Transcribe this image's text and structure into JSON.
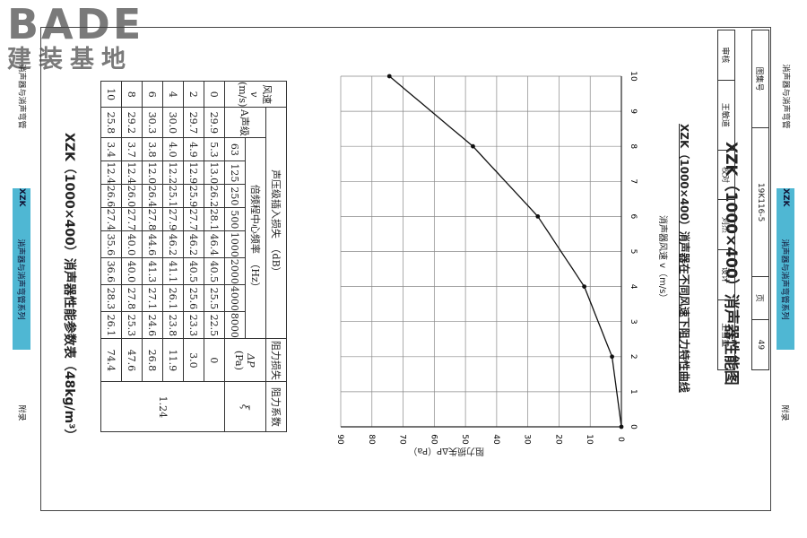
{
  "logo": {
    "en": "BADE",
    "cn": "建装基地"
  },
  "side_left": {
    "top": "消声器与消声弯管",
    "tab": "XZK",
    "tab_sub": "消声器与消声弯管系列",
    "bottom": "附录"
  },
  "side_right": {
    "top": "消声器与消声弯管",
    "tab": "XZK",
    "tab_sub": "消声器与消声弯管系列",
    "bottom": "附录"
  },
  "table_title": "XZK（1000×400）消声器性能参数表（48kg/m³）",
  "table": {
    "h_velocity": "风速",
    "h_v": "v",
    "h_unit": "(m/s)",
    "h_sound": "声压级插入损失　（dB）",
    "h_a_level": "A声级",
    "h_octave": "倍频程中心频率　（Hz）",
    "freqs": [
      "63",
      "125",
      "250",
      "500",
      "1000",
      "2000",
      "4000",
      "8000"
    ],
    "h_resist": "阻力损失",
    "h_dp": "ΔP",
    "h_pa": "(Pa)",
    "h_coef": "阻力系数",
    "h_xi": "ξ",
    "coef_value": "1.24",
    "rows": [
      {
        "v": "0",
        "a": "29.9",
        "f": [
          "5.3",
          "13.0",
          "26.2",
          "28.1",
          "46.4",
          "40.5",
          "25.5",
          "22.5"
        ],
        "dp": "0"
      },
      {
        "v": "2",
        "a": "29.7",
        "f": [
          "4.9",
          "12.9",
          "25.9",
          "27.7",
          "46.2",
          "40.5",
          "25.6",
          "23.3"
        ],
        "dp": "3.0"
      },
      {
        "v": "4",
        "a": "30.0",
        "f": [
          "4.0",
          "12.2",
          "25.1",
          "27.9",
          "46.2",
          "41.1",
          "26.1",
          "23.8"
        ],
        "dp": "11.9"
      },
      {
        "v": "6",
        "a": "30.3",
        "f": [
          "3.8",
          "12.0",
          "26.4",
          "27.8",
          "44.6",
          "41.3",
          "27.1",
          "24.6"
        ],
        "dp": "26.8"
      },
      {
        "v": "8",
        "a": "29.2",
        "f": [
          "3.7",
          "12.4",
          "26.0",
          "27.7",
          "40.0",
          "40.0",
          "27.8",
          "25.3"
        ],
        "dp": "47.6"
      },
      {
        "v": "10",
        "a": "25.8",
        "f": [
          "3.4",
          "12.4",
          "26.6",
          "27.4",
          "35.6",
          "36.6",
          "28.3",
          "26.1"
        ],
        "dp": "74.4"
      }
    ]
  },
  "chart_data": {
    "type": "line",
    "title": "XZK（1000×400）消声器在不同风速下阻力特性曲线",
    "xlabel": "消声器风速 v（m/s）",
    "ylabel": "阻力损失ΔP（Pa）",
    "xlim": [
      0,
      10
    ],
    "ylim": [
      0,
      90
    ],
    "x_ticks": [
      "0",
      "1",
      "2",
      "3",
      "4",
      "5",
      "6",
      "7",
      "8",
      "9",
      "10"
    ],
    "y_ticks": [
      "0",
      "10",
      "20",
      "30",
      "40",
      "50",
      "60",
      "70",
      "80",
      "90"
    ],
    "x": [
      0,
      2,
      4,
      6,
      8,
      10
    ],
    "y": [
      0,
      3.0,
      11.9,
      26.8,
      47.6,
      74.4
    ],
    "grid": true
  },
  "title_block": {
    "main_title": "XZK（1000×400）消声器性能图",
    "atlas_label": "图集号",
    "atlas_no": "19K116-5",
    "page_label": "页",
    "page_no": "49",
    "review_label": "审核",
    "reviewer": "王敏道",
    "check_label": "校对",
    "checker": "刘杰",
    "design_label": "设计",
    "designer": "王雪童"
  }
}
